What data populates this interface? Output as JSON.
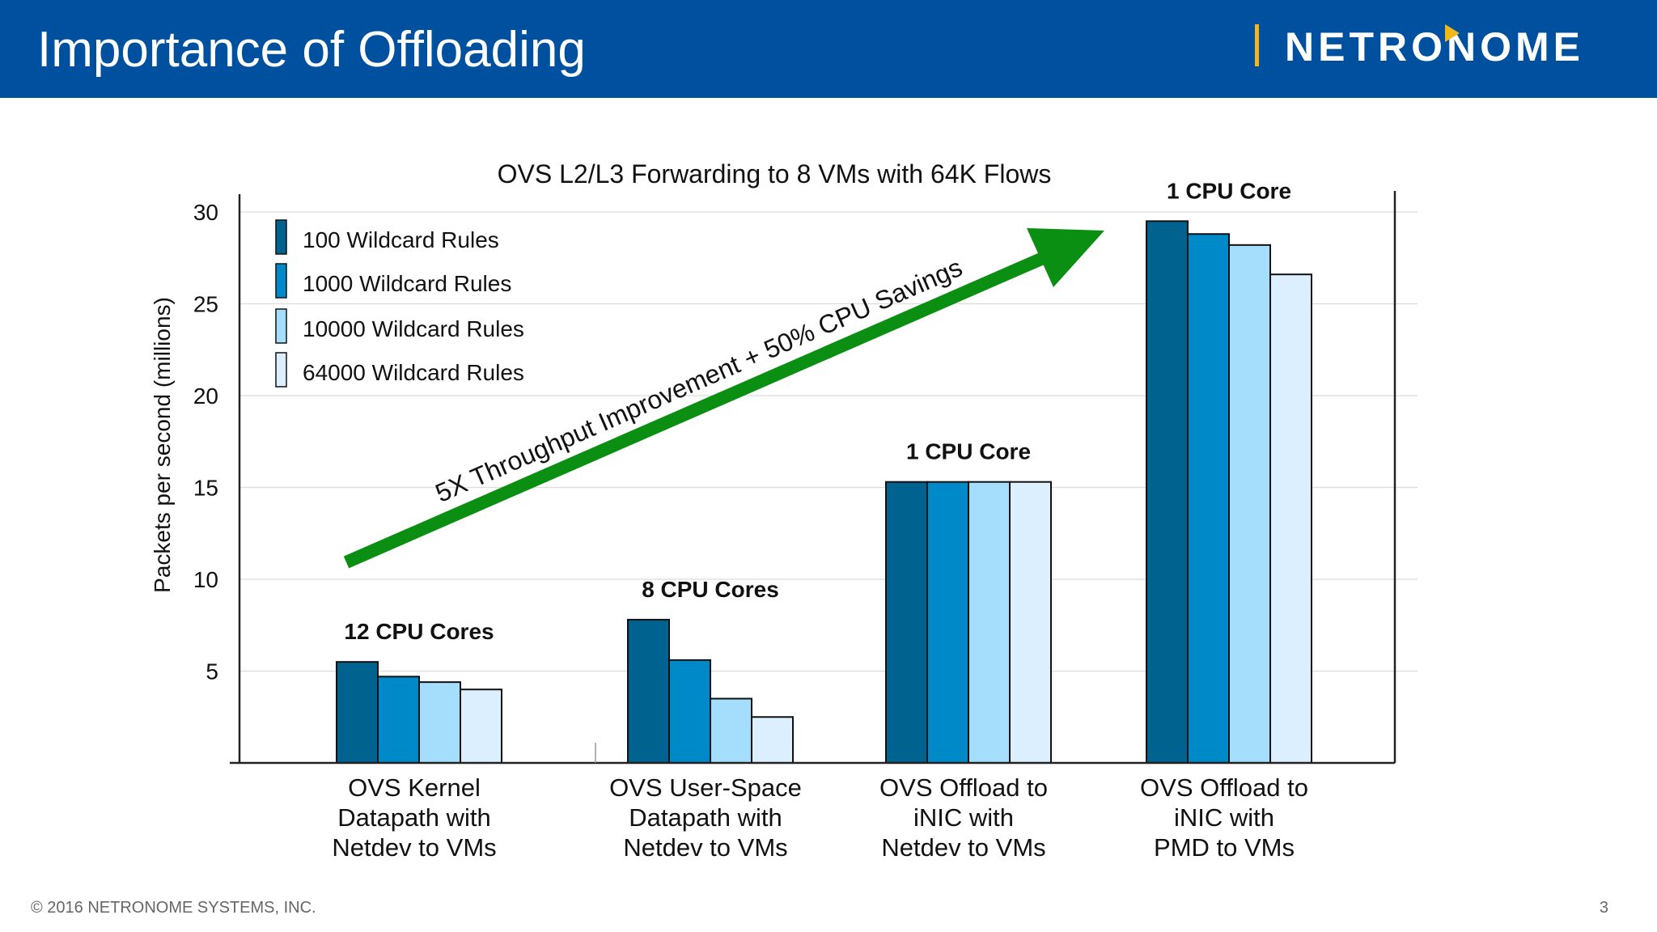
{
  "slide": {
    "title": "Importance of Offloading",
    "logo": "NETRONOME",
    "footer": "© 2016 NETRONOME SYSTEMS, INC.",
    "page_number": "3"
  },
  "colors": {
    "header_bg": "#0050a0",
    "logo_accent": "#f2b81a",
    "arrow": "#0a8f12"
  },
  "chart_data": {
    "type": "bar",
    "title": "OVS L2/L3 Forwarding to 8 VMs with 64K Flows",
    "ylabel": "Packets per second (millions)",
    "xlabel": "",
    "ylim": [
      0,
      30
    ],
    "yticks": [
      5,
      10,
      15,
      20,
      25,
      30
    ],
    "grid": true,
    "legend_position": "top-left",
    "categories": [
      [
        "OVS Kernel",
        "Datapath with",
        "Netdev to VMs"
      ],
      [
        "OVS User-Space",
        "Datapath with",
        "Netdev to VMs"
      ],
      [
        "OVS Offload to",
        "iNIC with",
        "Netdev to VMs"
      ],
      [
        "OVS Offload to",
        "iNIC with",
        "PMD to VMs"
      ]
    ],
    "group_labels": [
      "12 CPU Cores",
      "8 CPU Cores",
      "1 CPU Core",
      "1 CPU Core"
    ],
    "series": [
      {
        "name": "100 Wildcard Rules",
        "color": "#00628e",
        "values": [
          5.5,
          7.8,
          15.3,
          29.5
        ]
      },
      {
        "name": "1000 Wildcard Rules",
        "color": "#0089c8",
        "values": [
          4.7,
          5.6,
          15.3,
          28.8
        ]
      },
      {
        "name": "10000 Wildcard Rules",
        "color": "#a4defc",
        "values": [
          4.4,
          3.5,
          15.3,
          28.2
        ]
      },
      {
        "name": "64000 Wildcard Rules",
        "color": "#dcefff",
        "values": [
          4.0,
          2.5,
          15.3,
          26.6
        ]
      }
    ],
    "annotation": "5X Throughput Improvement + 50% CPU Savings"
  }
}
